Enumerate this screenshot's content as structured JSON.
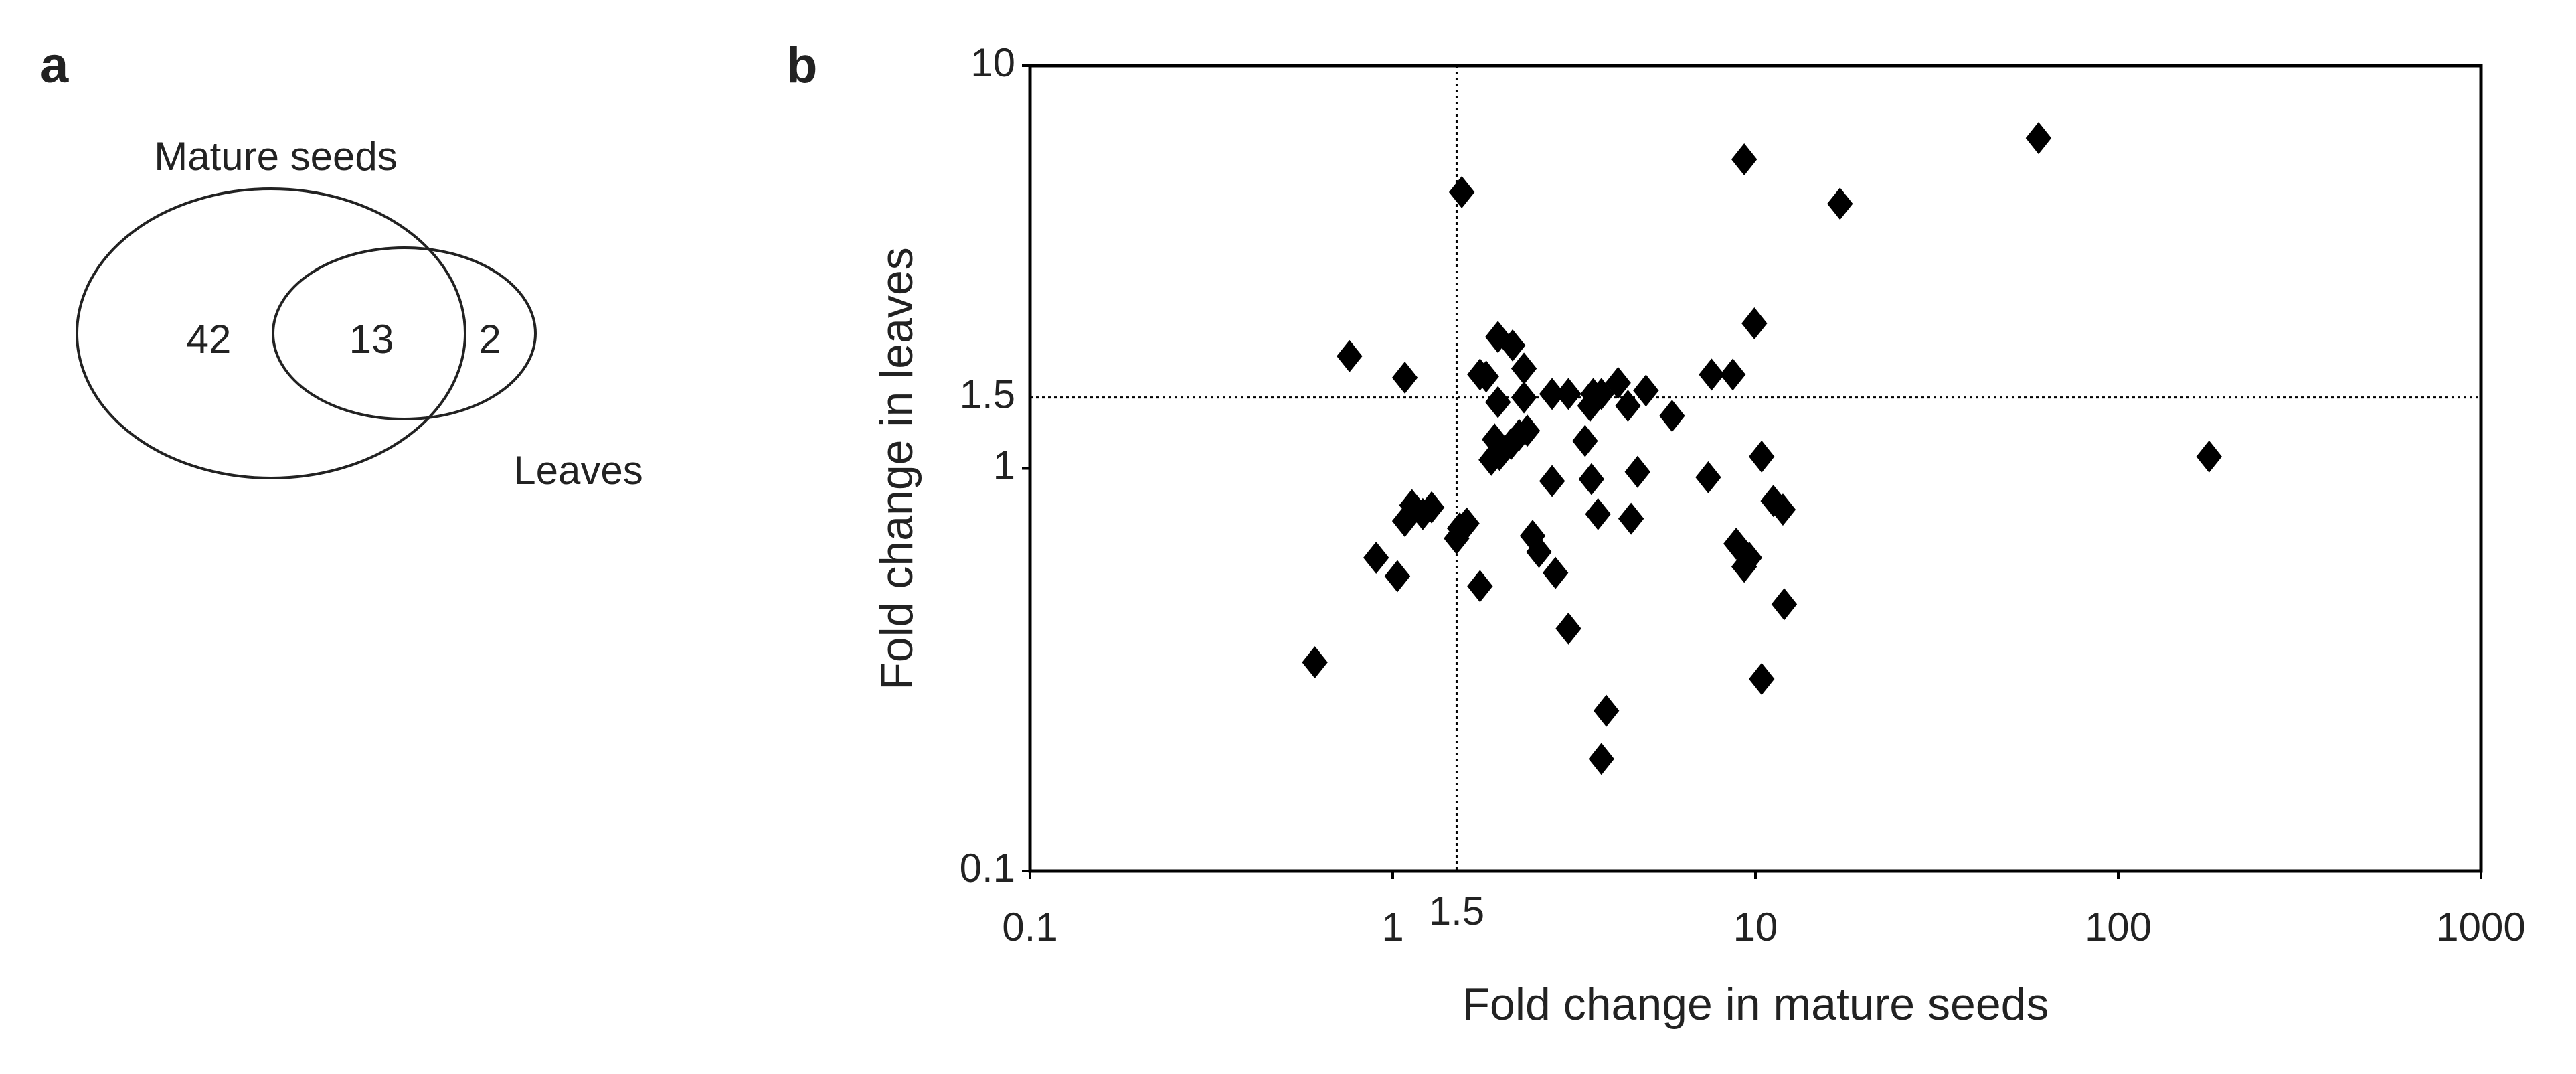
{
  "chart_data": [
    {
      "type": "venn",
      "panel": "a",
      "sets": [
        "Mature seeds",
        "Leaves"
      ],
      "values": [
        42,
        13,
        2
      ]
    },
    {
      "type": "scatter",
      "panel": "b",
      "x_label": "Fold change in mature seeds",
      "y_label": "Fold change in leaves",
      "xscale": "log",
      "yscale": "log",
      "xlim": [
        0.1,
        1000
      ],
      "ylim": [
        0.1,
        10
      ],
      "xticks": [
        0.1,
        1,
        10,
        100,
        1000
      ],
      "yticks": [
        0.1,
        1,
        10
      ],
      "ref_lines": {
        "x": 1.5,
        "y": 1.5
      },
      "marker": "diamond",
      "color": "#000000",
      "x": [
        0.61,
        0.76,
        1.08,
        1.55,
        1.21,
        0.9,
        1.03,
        1.08,
        1.13,
        1.28,
        1.5,
        1.53,
        1.6,
        1.74,
        1.74,
        1.81,
        1.95,
        2.14,
        2.3,
        1.95,
        2.3,
        2.35,
        1.91,
        2.12,
        2.23,
        1.87,
        1.97,
        2.75,
        2.43,
        2.53,
        2.81,
        3.05,
        2.75,
        3.05,
        3.39,
        3.5,
        3.57,
        3.76,
        4.18,
        4.45,
        4.99,
        5.89,
        3.53,
        3.68,
        3.88,
        3.76,
        4.54,
        4.73,
        7.41,
        7.57,
        8.66,
        8.85,
        9.31,
        9.62,
        9.93,
        10.4,
        10.4,
        11.2,
        11.9,
        12.0,
        9.31,
        17.1,
        60.3,
        178
      ],
      "y": [
        0.33,
        1.9,
        1.68,
        4.85,
        0.77,
        0.6,
        0.54,
        0.74,
        0.81,
        0.8,
        0.67,
        0.71,
        0.73,
        0.51,
        1.71,
        1.69,
        2.12,
        2.02,
        1.77,
        1.46,
        1.5,
        1.24,
        1.18,
        1.15,
        1.21,
        1.05,
        1.08,
        0.93,
        0.68,
        0.62,
        0.55,
        0.4,
        1.53,
        1.53,
        1.17,
        1.43,
        1.53,
        1.53,
        1.63,
        1.43,
        1.56,
        1.35,
        0.94,
        0.77,
        0.25,
        0.19,
        0.75,
        0.98,
        0.95,
        1.71,
        1.71,
        0.65,
        0.57,
        0.6,
        2.29,
        1.07,
        0.3,
        0.83,
        0.79,
        0.46,
        5.85,
        4.54,
        6.61,
        1.07
      ]
    }
  ]
}
